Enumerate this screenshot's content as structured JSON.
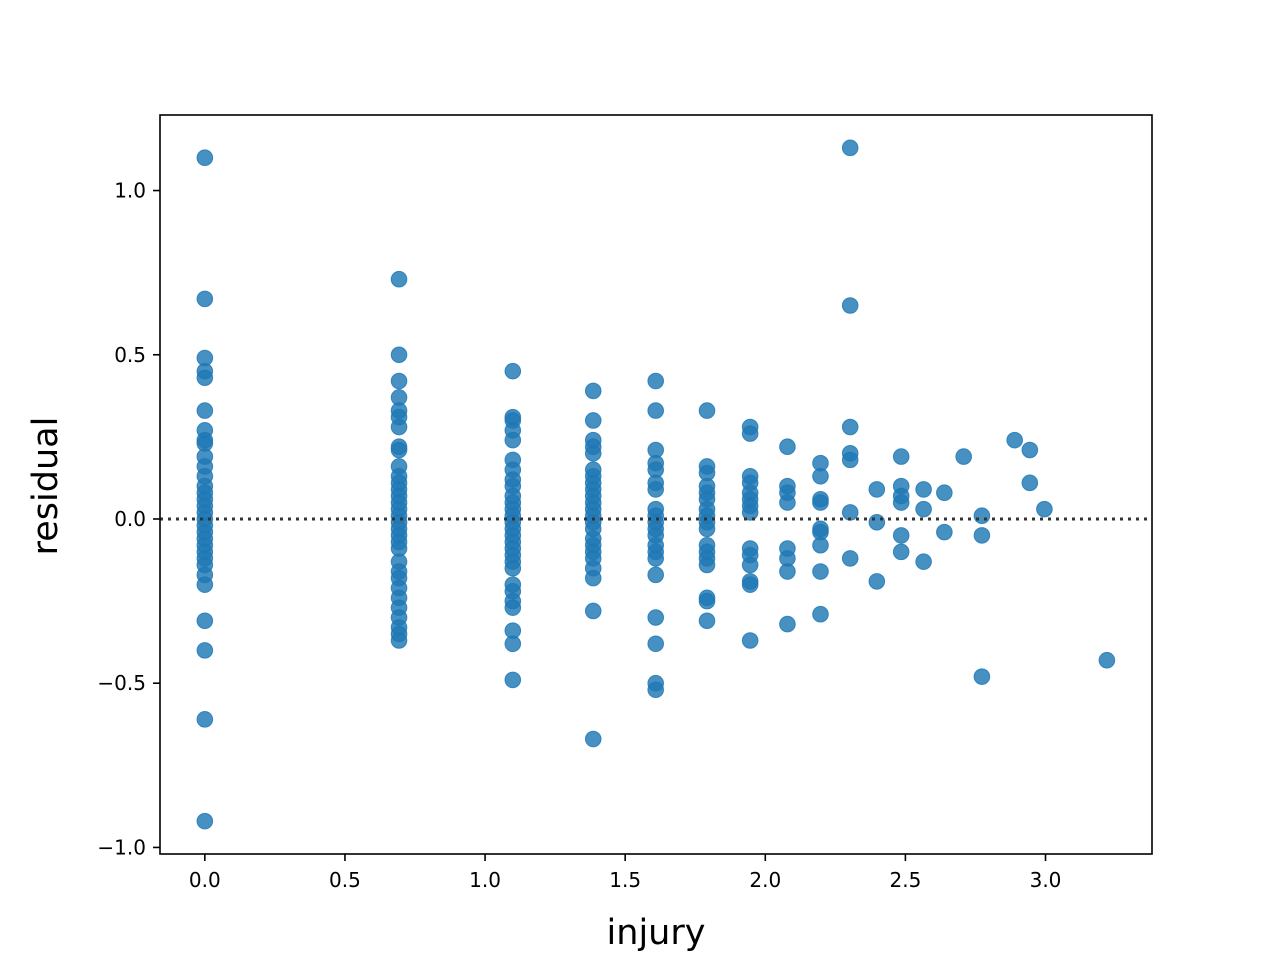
{
  "chart_data": {
    "type": "scatter",
    "title": "",
    "xlabel": "injury",
    "ylabel": "residual",
    "xlim": [
      -0.16,
      3.38
    ],
    "ylim": [
      -1.02,
      1.23
    ],
    "xticks": [
      0.0,
      0.5,
      1.0,
      1.5,
      2.0,
      2.5,
      3.0
    ],
    "xtick_labels": [
      "0.0",
      "0.5",
      "1.0",
      "1.5",
      "2.0",
      "2.5",
      "3.0"
    ],
    "yticks": [
      -1.0,
      -0.5,
      0.0,
      0.5,
      1.0
    ],
    "ytick_labels": [
      "−1.0",
      "−0.5",
      "0.0",
      "0.5",
      "1.0"
    ],
    "grid": false,
    "reference_line": {
      "y": 0.0,
      "style": "dotted",
      "color": "#333333"
    },
    "point_color": "#1f77b4",
    "points": [
      [
        0.0,
        1.1
      ],
      [
        0.0,
        0.67
      ],
      [
        0.0,
        0.49
      ],
      [
        0.0,
        0.45
      ],
      [
        0.0,
        0.43
      ],
      [
        0.0,
        0.33
      ],
      [
        0.0,
        0.27
      ],
      [
        0.0,
        0.24
      ],
      [
        0.0,
        0.23
      ],
      [
        0.0,
        0.19
      ],
      [
        0.0,
        0.16
      ],
      [
        0.0,
        0.13
      ],
      [
        0.0,
        0.1
      ],
      [
        0.0,
        0.08
      ],
      [
        0.0,
        0.06
      ],
      [
        0.0,
        0.04
      ],
      [
        0.0,
        0.02
      ],
      [
        0.0,
        0.0
      ],
      [
        0.0,
        -0.02
      ],
      [
        0.0,
        -0.04
      ],
      [
        0.0,
        -0.06
      ],
      [
        0.0,
        -0.08
      ],
      [
        0.0,
        -0.1
      ],
      [
        0.0,
        -0.12
      ],
      [
        0.0,
        -0.14
      ],
      [
        0.0,
        -0.17
      ],
      [
        0.0,
        -0.2
      ],
      [
        0.0,
        -0.31
      ],
      [
        0.0,
        -0.4
      ],
      [
        0.0,
        -0.61
      ],
      [
        0.0,
        -0.92
      ],
      [
        0.693,
        0.73
      ],
      [
        0.693,
        0.5
      ],
      [
        0.693,
        0.42
      ],
      [
        0.693,
        0.37
      ],
      [
        0.693,
        0.33
      ],
      [
        0.693,
        0.31
      ],
      [
        0.693,
        0.28
      ],
      [
        0.693,
        0.22
      ],
      [
        0.693,
        0.21
      ],
      [
        0.693,
        0.16
      ],
      [
        0.693,
        0.13
      ],
      [
        0.693,
        0.11
      ],
      [
        0.693,
        0.09
      ],
      [
        0.693,
        0.07
      ],
      [
        0.693,
        0.05
      ],
      [
        0.693,
        0.03
      ],
      [
        0.693,
        0.01
      ],
      [
        0.693,
        -0.01
      ],
      [
        0.693,
        -0.03
      ],
      [
        0.693,
        -0.05
      ],
      [
        0.693,
        -0.07
      ],
      [
        0.693,
        -0.09
      ],
      [
        0.693,
        -0.13
      ],
      [
        0.693,
        -0.16
      ],
      [
        0.693,
        -0.18
      ],
      [
        0.693,
        -0.21
      ],
      [
        0.693,
        -0.24
      ],
      [
        0.693,
        -0.27
      ],
      [
        0.693,
        -0.3
      ],
      [
        0.693,
        -0.33
      ],
      [
        0.693,
        -0.35
      ],
      [
        0.693,
        -0.37
      ],
      [
        1.099,
        0.45
      ],
      [
        1.099,
        0.31
      ],
      [
        1.099,
        0.3
      ],
      [
        1.099,
        0.27
      ],
      [
        1.099,
        0.24
      ],
      [
        1.099,
        0.18
      ],
      [
        1.099,
        0.15
      ],
      [
        1.099,
        0.12
      ],
      [
        1.099,
        0.1
      ],
      [
        1.099,
        0.07
      ],
      [
        1.099,
        0.05
      ],
      [
        1.099,
        0.03
      ],
      [
        1.099,
        0.01
      ],
      [
        1.099,
        -0.01
      ],
      [
        1.099,
        -0.03
      ],
      [
        1.099,
        -0.05
      ],
      [
        1.099,
        -0.07
      ],
      [
        1.099,
        -0.09
      ],
      [
        1.099,
        -0.11
      ],
      [
        1.099,
        -0.13
      ],
      [
        1.099,
        -0.15
      ],
      [
        1.099,
        -0.2
      ],
      [
        1.099,
        -0.22
      ],
      [
        1.099,
        -0.25
      ],
      [
        1.099,
        -0.27
      ],
      [
        1.099,
        -0.34
      ],
      [
        1.099,
        -0.38
      ],
      [
        1.099,
        -0.49
      ],
      [
        1.386,
        0.39
      ],
      [
        1.386,
        0.3
      ],
      [
        1.386,
        0.24
      ],
      [
        1.386,
        0.22
      ],
      [
        1.386,
        0.2
      ],
      [
        1.386,
        0.15
      ],
      [
        1.386,
        0.13
      ],
      [
        1.386,
        0.11
      ],
      [
        1.386,
        0.09
      ],
      [
        1.386,
        0.07
      ],
      [
        1.386,
        0.05
      ],
      [
        1.386,
        0.03
      ],
      [
        1.386,
        0.01
      ],
      [
        1.386,
        -0.01
      ],
      [
        1.386,
        -0.03
      ],
      [
        1.386,
        -0.06
      ],
      [
        1.386,
        -0.08
      ],
      [
        1.386,
        -0.1
      ],
      [
        1.386,
        -0.12
      ],
      [
        1.386,
        -0.15
      ],
      [
        1.386,
        -0.18
      ],
      [
        1.386,
        -0.28
      ],
      [
        1.386,
        -0.67
      ],
      [
        1.609,
        0.42
      ],
      [
        1.609,
        0.33
      ],
      [
        1.609,
        0.21
      ],
      [
        1.609,
        0.17
      ],
      [
        1.609,
        0.15
      ],
      [
        1.609,
        0.11
      ],
      [
        1.609,
        0.09
      ],
      [
        1.609,
        0.03
      ],
      [
        1.609,
        0.01
      ],
      [
        1.609,
        -0.01
      ],
      [
        1.609,
        -0.03
      ],
      [
        1.609,
        -0.05
      ],
      [
        1.609,
        -0.08
      ],
      [
        1.609,
        -0.1
      ],
      [
        1.609,
        -0.12
      ],
      [
        1.609,
        -0.17
      ],
      [
        1.609,
        -0.3
      ],
      [
        1.609,
        -0.38
      ],
      [
        1.609,
        -0.5
      ],
      [
        1.609,
        -0.52
      ],
      [
        1.792,
        0.33
      ],
      [
        1.792,
        0.16
      ],
      [
        1.792,
        0.14
      ],
      [
        1.792,
        0.1
      ],
      [
        1.792,
        0.08
      ],
      [
        1.792,
        0.06
      ],
      [
        1.792,
        0.03
      ],
      [
        1.792,
        0.01
      ],
      [
        1.792,
        -0.01
      ],
      [
        1.792,
        -0.03
      ],
      [
        1.792,
        -0.08
      ],
      [
        1.792,
        -0.1
      ],
      [
        1.792,
        -0.12
      ],
      [
        1.792,
        -0.14
      ],
      [
        1.792,
        -0.24
      ],
      [
        1.792,
        -0.25
      ],
      [
        1.792,
        -0.31
      ],
      [
        1.946,
        0.28
      ],
      [
        1.946,
        0.26
      ],
      [
        1.946,
        0.13
      ],
      [
        1.946,
        0.11
      ],
      [
        1.946,
        0.08
      ],
      [
        1.946,
        0.06
      ],
      [
        1.946,
        0.04
      ],
      [
        1.946,
        0.02
      ],
      [
        1.946,
        -0.09
      ],
      [
        1.946,
        -0.11
      ],
      [
        1.946,
        -0.14
      ],
      [
        1.946,
        -0.19
      ],
      [
        1.946,
        -0.2
      ],
      [
        1.946,
        -0.37
      ],
      [
        2.079,
        0.22
      ],
      [
        2.079,
        0.1
      ],
      [
        2.079,
        0.08
      ],
      [
        2.079,
        0.05
      ],
      [
        2.079,
        -0.09
      ],
      [
        2.079,
        -0.12
      ],
      [
        2.079,
        -0.16
      ],
      [
        2.079,
        -0.32
      ],
      [
        2.197,
        0.17
      ],
      [
        2.197,
        0.13
      ],
      [
        2.197,
        0.06
      ],
      [
        2.197,
        0.05
      ],
      [
        2.197,
        -0.03
      ],
      [
        2.197,
        -0.04
      ],
      [
        2.197,
        -0.08
      ],
      [
        2.197,
        -0.16
      ],
      [
        2.197,
        -0.29
      ],
      [
        2.303,
        1.13
      ],
      [
        2.303,
        0.65
      ],
      [
        2.303,
        0.28
      ],
      [
        2.303,
        0.2
      ],
      [
        2.303,
        0.18
      ],
      [
        2.303,
        0.02
      ],
      [
        2.303,
        -0.12
      ],
      [
        2.398,
        0.09
      ],
      [
        2.398,
        -0.01
      ],
      [
        2.398,
        -0.19
      ],
      [
        2.485,
        0.19
      ],
      [
        2.485,
        0.1
      ],
      [
        2.485,
        0.07
      ],
      [
        2.485,
        0.05
      ],
      [
        2.485,
        -0.05
      ],
      [
        2.485,
        -0.1
      ],
      [
        2.565,
        0.09
      ],
      [
        2.565,
        0.03
      ],
      [
        2.565,
        -0.13
      ],
      [
        2.639,
        0.08
      ],
      [
        2.639,
        -0.04
      ],
      [
        2.708,
        0.19
      ],
      [
        2.773,
        0.01
      ],
      [
        2.773,
        -0.05
      ],
      [
        2.773,
        -0.48
      ],
      [
        2.89,
        0.24
      ],
      [
        2.944,
        0.21
      ],
      [
        2.944,
        0.11
      ],
      [
        2.996,
        0.03
      ],
      [
        3.219,
        -0.43
      ]
    ]
  }
}
